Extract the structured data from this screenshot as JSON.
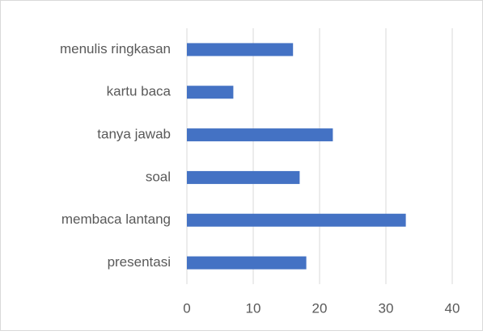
{
  "chart_data": {
    "type": "barh",
    "categories": [
      "menulis ringkasan",
      "kartu baca",
      "tanya jawab",
      "soal",
      "membaca lantang",
      "presentasi"
    ],
    "values": [
      16,
      7,
      22,
      17,
      33,
      18
    ],
    "color": "#4472c4",
    "xlim": [
      0,
      40
    ],
    "xticks": [
      0,
      10,
      20,
      30,
      40
    ],
    "grid": true
  }
}
